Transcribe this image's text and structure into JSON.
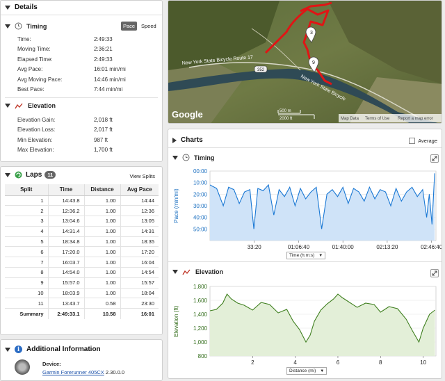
{
  "details": {
    "title": "Details",
    "timing": {
      "title": "Timing",
      "toggle_pace": "Pace",
      "toggle_speed": "Speed",
      "rows": [
        {
          "label": "Time:",
          "value": "2:49:33"
        },
        {
          "label": "Moving Time:",
          "value": "2:36:21"
        },
        {
          "label": "Elapsed Time:",
          "value": "2:49:33"
        },
        {
          "label": "Avg Pace:",
          "value": "16:01 min/mi"
        },
        {
          "label": "Avg Moving Pace:",
          "value": "14:46 min/mi"
        },
        {
          "label": "Best Pace:",
          "value": "7:44 min/mi"
        }
      ]
    },
    "elevation": {
      "title": "Elevation",
      "rows": [
        {
          "label": "Elevation Gain:",
          "value": "2,018 ft"
        },
        {
          "label": "Elevation Loss:",
          "value": "2,017 ft"
        },
        {
          "label": "Min Elevation:",
          "value": "987 ft"
        },
        {
          "label": "Max Elevation:",
          "value": "1,700 ft"
        }
      ]
    }
  },
  "laps": {
    "title": "Laps",
    "count": "11",
    "view_splits": "View Splits",
    "headers": [
      "Split",
      "Time",
      "Distance",
      "Avg Pace"
    ],
    "rows": [
      [
        "1",
        "14:43.8",
        "1.00",
        "14:44"
      ],
      [
        "2",
        "12:36.2",
        "1.00",
        "12:36"
      ],
      [
        "3",
        "13:04.6",
        "1.00",
        "13:05"
      ],
      [
        "4",
        "14:31.4",
        "1.00",
        "14:31"
      ],
      [
        "5",
        "18:34.8",
        "1.00",
        "18:35"
      ],
      [
        "6",
        "17:20.0",
        "1.00",
        "17:20"
      ],
      [
        "7",
        "16:03.7",
        "1.00",
        "16:04"
      ],
      [
        "8",
        "14:54.0",
        "1.00",
        "14:54"
      ],
      [
        "9",
        "15:57.0",
        "1.00",
        "15:57"
      ],
      [
        "10",
        "18:03.9",
        "1.00",
        "18:04"
      ],
      [
        "11",
        "13:43.7",
        "0.58",
        "23:30"
      ]
    ],
    "summary": [
      "Summary",
      "2:49:33.1",
      "10.58",
      "16:01"
    ]
  },
  "additional": {
    "title": "Additional Information",
    "device_label": "Device:",
    "device_name": "Garmin Forerunner 405CX",
    "device_version": "2.30.0.0"
  },
  "map": {
    "road1": "New York State Bicycle Route 17",
    "road2": "New York State Bicycle",
    "route_num": "352",
    "marker_3": "3",
    "marker_9": "9",
    "scale_m": "500 m",
    "scale_ft": "2000 ft",
    "map_data": "Map Data",
    "terms": "Terms of Use",
    "report": "Report a map error",
    "logo": "Google"
  },
  "charts": {
    "title": "Charts",
    "average_label": "Average",
    "timing_title": "Timing",
    "elevation_title": "Elevation",
    "timing_xaxis_select": "Time (h:m:s)",
    "elevation_xaxis_select": "Distance (mi)"
  },
  "chart_data": [
    {
      "type": "area",
      "title": "Timing",
      "ylabel": "Pace (min/mi)",
      "xlabel": "Time (h:m:s)",
      "ylim": [
        0,
        60
      ],
      "y_inverted": true,
      "yticks": [
        "00:00",
        "10:00",
        "20:00",
        "30:00",
        "40:00",
        "50:00"
      ],
      "xticks": [
        "33:20",
        "01:06:40",
        "01:40:00",
        "02:13:20",
        "02:46:40"
      ],
      "xlim": [
        0,
        170
      ],
      "x": [
        0,
        5,
        10,
        14,
        18,
        22,
        26,
        30,
        33,
        36,
        40,
        44,
        48,
        52,
        56,
        60,
        64,
        68,
        72,
        76,
        80,
        84,
        88,
        92,
        96,
        100,
        104,
        108,
        112,
        116,
        120,
        124,
        128,
        132,
        136,
        140,
        144,
        148,
        152,
        156,
        160,
        163,
        165,
        167,
        169
      ],
      "series": [
        {
          "name": "Pace",
          "values": [
            12,
            15,
            30,
            14,
            16,
            28,
            18,
            16,
            50,
            15,
            17,
            12,
            38,
            16,
            22,
            14,
            30,
            15,
            24,
            18,
            14,
            50,
            20,
            16,
            22,
            14,
            28,
            15,
            18,
            26,
            14,
            24,
            16,
            18,
            30,
            15,
            26,
            18,
            14,
            22,
            16,
            40,
            20,
            46,
            2
          ]
        }
      ]
    },
    {
      "type": "area",
      "title": "Elevation",
      "ylabel": "Elevation (ft)",
      "xlabel": "Distance (mi)",
      "ylim": [
        800,
        1800
      ],
      "yticks": [
        800,
        1000,
        1200,
        1400,
        1600,
        1800
      ],
      "xticks": [
        2,
        4,
        6,
        8,
        10
      ],
      "xlim": [
        0,
        10.6
      ],
      "x": [
        0,
        0.3,
        0.6,
        0.8,
        1.0,
        1.3,
        1.6,
        2.0,
        2.4,
        2.8,
        3.2,
        3.6,
        3.9,
        4.2,
        4.5,
        4.7,
        4.9,
        5.2,
        5.5,
        5.8,
        6.0,
        6.2,
        6.5,
        6.9,
        7.3,
        7.7,
        8.0,
        8.4,
        8.8,
        9.2,
        9.5,
        9.8,
        10.0,
        10.3,
        10.55
      ],
      "series": [
        {
          "name": "Elevation",
          "values": [
            1450,
            1470,
            1560,
            1690,
            1620,
            1560,
            1530,
            1460,
            1570,
            1540,
            1420,
            1470,
            1300,
            1180,
            1000,
            1100,
            1300,
            1460,
            1550,
            1620,
            1690,
            1640,
            1580,
            1500,
            1560,
            1540,
            1430,
            1510,
            1480,
            1330,
            1160,
            1000,
            1200,
            1400,
            1460
          ]
        }
      ]
    }
  ]
}
